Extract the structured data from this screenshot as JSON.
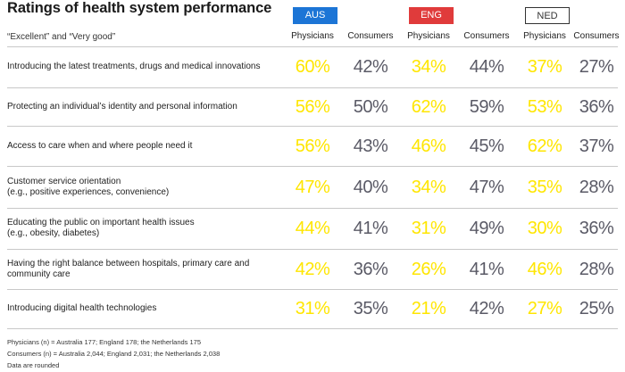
{
  "chart_data": {
    "type": "table",
    "title": "Ratings of health system performance",
    "subtitle": "“Excellent” and “Very good”",
    "regions": [
      "AUS",
      "ENG",
      "NED"
    ],
    "columns": [
      "Physicians",
      "Consumers",
      "Physicians",
      "Consumers",
      "Physicians",
      "Consumers"
    ],
    "rows": [
      {
        "label": "Introducing the latest treatments, drugs and medical innovations",
        "values": [
          "60%",
          "42%",
          "34%",
          "44%",
          "37%",
          "27%"
        ]
      },
      {
        "label": "Protecting an individual’s identity and personal information",
        "values": [
          "56%",
          "50%",
          "62%",
          "59%",
          "53%",
          "36%"
        ]
      },
      {
        "label": "Access to care when and where people need it",
        "values": [
          "56%",
          "43%",
          "46%",
          "45%",
          "62%",
          "37%"
        ]
      },
      {
        "label": "Customer service orientation\n(e.g., positive experiences, convenience)",
        "values": [
          "47%",
          "40%",
          "34%",
          "47%",
          "35%",
          "28%"
        ]
      },
      {
        "label": "Educating the public on important health issues\n(e.g., obesity, diabetes)",
        "values": [
          "44%",
          "41%",
          "31%",
          "49%",
          "30%",
          "36%"
        ]
      },
      {
        "label": "Having the right balance between hospitals, primary care and\ncommunity care",
        "values": [
          "42%",
          "36%",
          "26%",
          "41%",
          "46%",
          "28%"
        ]
      },
      {
        "label": "Introducing digital health technologies",
        "values": [
          "31%",
          "35%",
          "21%",
          "42%",
          "27%",
          "25%"
        ]
      }
    ],
    "footnotes": [
      "Physicians (n) = Australia 177; England 178; the Netherlands 175",
      "Consumers (n) = Australia 2,044; England 2,031; the Netherlands 2,038",
      "Data are rounded"
    ]
  },
  "colors": {
    "aus": "#1c75d6",
    "eng": "#e03b3b",
    "physicians": "#ffe600",
    "consumers": "#5a5a66",
    "separator": "#c8c8c8"
  }
}
